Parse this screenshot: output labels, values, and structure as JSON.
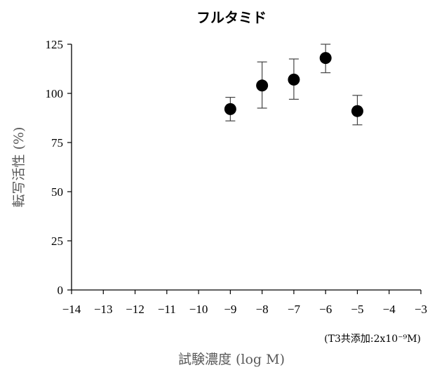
{
  "chart_data": {
    "type": "scatter",
    "title": "フルタミド",
    "xlabel": "試験濃度 (log M)",
    "ylabel": "転写活性 (%)",
    "xlim": [
      -14,
      -3
    ],
    "ylim": [
      0,
      125
    ],
    "xticks": [
      -14,
      -13,
      -12,
      -11,
      -10,
      -9,
      -8,
      -7,
      -6,
      -5,
      -4,
      -3
    ],
    "yticks": [
      0,
      25,
      50,
      75,
      100,
      125
    ],
    "xtick_labels": [
      "−14",
      "−13",
      "−12",
      "−11",
      "−10",
      "−9",
      "−8",
      "−7",
      "−6",
      "−5",
      "−4",
      "−3"
    ],
    "ytick_labels": [
      "0",
      "25",
      "50",
      "75",
      "100",
      "125"
    ],
    "grid": false,
    "note": "(T3共添加:2x10⁻⁹M)",
    "marker_color": "#000000",
    "points": [
      {
        "x": -9,
        "y": 92,
        "err_low": 86,
        "err_high": 98
      },
      {
        "x": -8,
        "y": 104,
        "err_low": 92.5,
        "err_high": 116
      },
      {
        "x": -7,
        "y": 107,
        "err_low": 97,
        "err_high": 117.5
      },
      {
        "x": -6,
        "y": 118,
        "err_low": 110.5,
        "err_high": 125
      },
      {
        "x": -5,
        "y": 91,
        "err_low": 84,
        "err_high": 99
      }
    ]
  }
}
